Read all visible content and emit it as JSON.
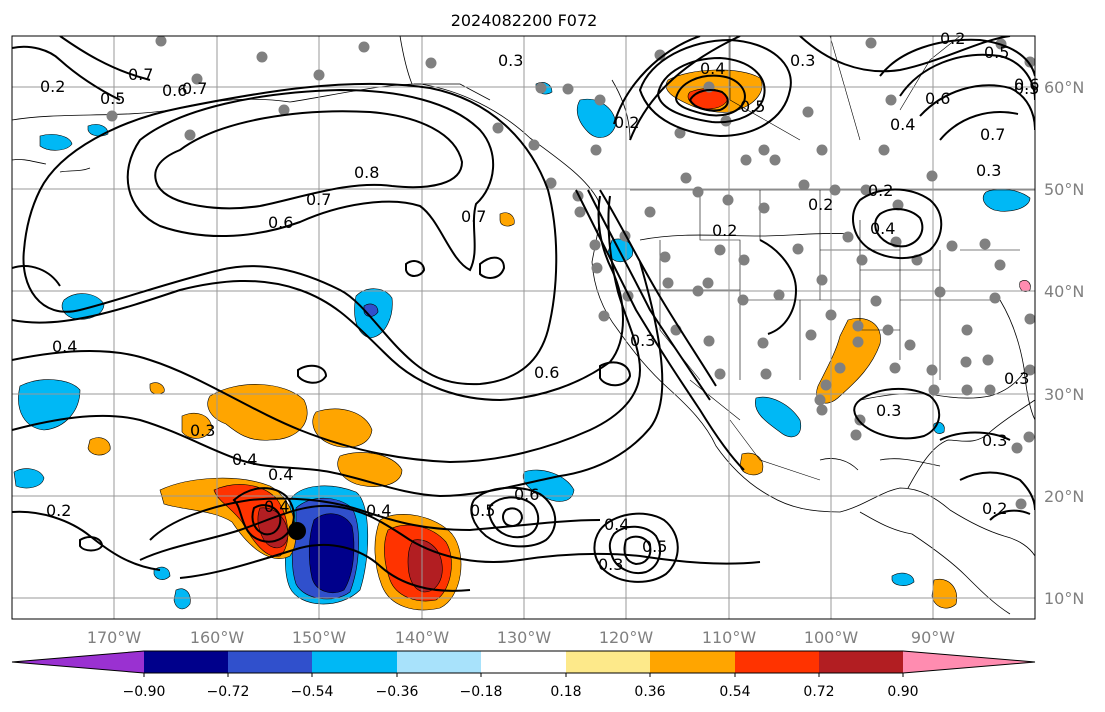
{
  "title": "2024082200 F072",
  "lon_labels": [
    "170°W",
    "160°W",
    "150°W",
    "140°W",
    "130°W",
    "120°W",
    "110°W",
    "100°W",
    "90°W"
  ],
  "lat_labels": [
    "60°N",
    "50°N",
    "40°N",
    "30°N",
    "20°N",
    "10°N"
  ],
  "colorbar": {
    "tick_labels": [
      "−0.90",
      "−0.72",
      "−0.54",
      "−0.36",
      "−0.18",
      "0.18",
      "0.36",
      "0.54",
      "0.72",
      "0.90"
    ],
    "colors": [
      "#9a31d1",
      "#00008b",
      "#3050cc",
      "#00b8f5",
      "#a8e2fb",
      "#ffffff",
      "#fde98a",
      "#ffa500",
      "#ff3300",
      "#b21e22",
      "#ff8cb0"
    ]
  },
  "contour_labels": [
    "0.8",
    "0.7",
    "0.6",
    "0.7",
    "0.6",
    "0.4",
    "0.4",
    "0.4",
    "0.4",
    "0.5",
    "0.6",
    "0.6",
    "0.3",
    "0.3",
    "0.2",
    "0.4",
    "0.5",
    "0.5",
    "0.7",
    "0.5",
    "0.6",
    "0.4",
    "0.6",
    "0.7",
    "0.3",
    "0.2",
    "0.2",
    "0.4",
    "0.2",
    "0.2",
    "0.3",
    "0.3",
    "0.3",
    "0.3",
    "0.2",
    "0.3",
    "0.2",
    "0.4",
    "0.5",
    "0.5",
    "0.2",
    "0.3",
    "0.7",
    "0.4"
  ]
}
